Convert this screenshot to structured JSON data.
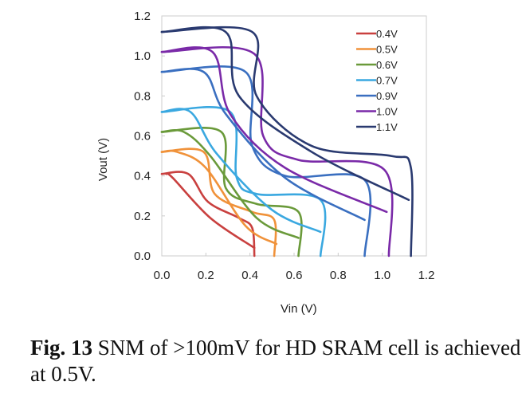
{
  "chart_data": {
    "type": "line",
    "title": "",
    "xlabel": "Vin (V)",
    "ylabel": "Vout (V)",
    "xlim": [
      0,
      1.2
    ],
    "ylim": [
      0,
      1.2
    ],
    "xticks": [
      "0.0",
      "0.2",
      "0.4",
      "0.6",
      "0.8",
      "1.0",
      "1.2"
    ],
    "yticks": [
      "0.0",
      "0.2",
      "0.4",
      "0.6",
      "0.8",
      "1.0",
      "1.2"
    ],
    "grid": false,
    "legend_position": "top-right",
    "series": [
      {
        "name": "0.4V",
        "color": "#c9403f",
        "curves": [
          [
            [
              0,
              0.41
            ],
            [
              0.12,
              0.41
            ],
            [
              0.21,
              0.27
            ],
            [
              0.35,
              0.19
            ],
            [
              0.41,
              0.14
            ],
            [
              0.42,
              0
            ]
          ],
          [
            [
              0.02,
              0.41
            ],
            [
              0.05,
              0.39
            ],
            [
              0.22,
              0.19
            ],
            [
              0.42,
              0.04
            ]
          ]
        ]
      },
      {
        "name": "0.5V",
        "color": "#f0923a",
        "curves": [
          [
            [
              0,
              0.52
            ],
            [
              0.19,
              0.52
            ],
            [
              0.24,
              0.31
            ],
            [
              0.41,
              0.22
            ],
            [
              0.51,
              0.18
            ],
            [
              0.51,
              0
            ]
          ],
          [
            [
              0,
              0.52
            ],
            [
              0.07,
              0.52
            ],
            [
              0.2,
              0.44
            ],
            [
              0.38,
              0.15
            ],
            [
              0.52,
              0.06
            ]
          ]
        ]
      },
      {
        "name": "0.6V",
        "color": "#6a9a3a",
        "curves": [
          [
            [
              0,
              0.62
            ],
            [
              0.27,
              0.62
            ],
            [
              0.29,
              0.34
            ],
            [
              0.43,
              0.26
            ],
            [
              0.62,
              0.22
            ],
            [
              0.62,
              0
            ]
          ],
          [
            [
              0,
              0.62
            ],
            [
              0.1,
              0.62
            ],
            [
              0.22,
              0.5
            ],
            [
              0.43,
              0.19
            ],
            [
              0.62,
              0.09
            ]
          ]
        ]
      },
      {
        "name": "0.7V",
        "color": "#3aa8e0",
        "curves": [
          [
            [
              0,
              0.72
            ],
            [
              0.31,
              0.72
            ],
            [
              0.34,
              0.39
            ],
            [
              0.43,
              0.31
            ],
            [
              0.72,
              0.28
            ],
            [
              0.72,
              0
            ]
          ],
          [
            [
              0,
              0.72
            ],
            [
              0.13,
              0.72
            ],
            [
              0.25,
              0.51
            ],
            [
              0.5,
              0.23
            ],
            [
              0.72,
              0.12
            ]
          ]
        ]
      },
      {
        "name": "0.9V",
        "color": "#3a6fc0",
        "curves": [
          [
            [
              0,
              0.92
            ],
            [
              0.38,
              0.92
            ],
            [
              0.41,
              0.55
            ],
            [
              0.56,
              0.4
            ],
            [
              0.92,
              0.38
            ],
            [
              0.92,
              0
            ]
          ],
          [
            [
              0,
              0.92
            ],
            [
              0.19,
              0.92
            ],
            [
              0.29,
              0.71
            ],
            [
              0.56,
              0.39
            ],
            [
              0.92,
              0.18
            ]
          ]
        ]
      },
      {
        "name": "1.0V",
        "color": "#7a2aa8",
        "curves": [
          [
            [
              0,
              1.02
            ],
            [
              0.42,
              1.01
            ],
            [
              0.46,
              0.6
            ],
            [
              0.62,
              0.48
            ],
            [
              1.01,
              0.43
            ],
            [
              1.03,
              0
            ]
          ],
          [
            [
              0,
              1.02
            ],
            [
              0.23,
              1.02
            ],
            [
              0.31,
              0.71
            ],
            [
              0.56,
              0.44
            ],
            [
              1.02,
              0.22
            ]
          ]
        ]
      },
      {
        "name": "1.1V",
        "color": "#2a3a70",
        "curves": [
          [
            [
              0,
              1.12
            ],
            [
              0.41,
              1.12
            ],
            [
              0.43,
              0.8
            ],
            [
              0.68,
              0.55
            ],
            [
              1.04,
              0.5
            ],
            [
              1.13,
              0.44
            ],
            [
              1.13,
              0
            ]
          ],
          [
            [
              0,
              1.12
            ],
            [
              0.29,
              1.12
            ],
            [
              0.35,
              0.8
            ],
            [
              0.68,
              0.52
            ],
            [
              1.12,
              0.28
            ]
          ]
        ]
      }
    ]
  },
  "caption": {
    "label": "Fig. 13",
    "text": " SNM of >100mV for HD SRAM cell is achieved at 0.5V."
  }
}
